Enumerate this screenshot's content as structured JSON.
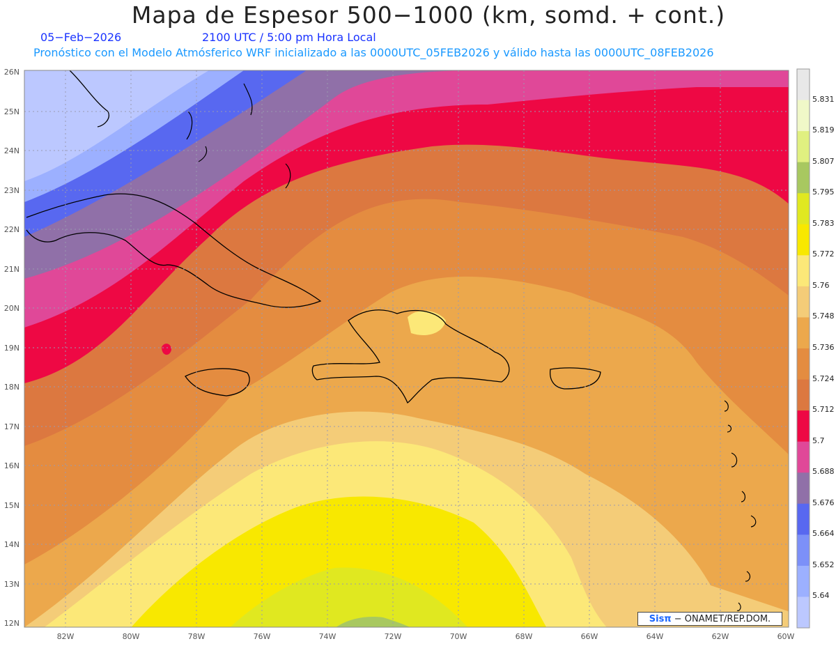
{
  "title": "Mapa de Espesor 500−1000 (km, somd. + cont.)",
  "date": "05−Feb−2026",
  "time": "2100 UTC / 5:00 pm Hora Local",
  "subtitle": "Pronóstico con el Modelo Atmósferico WRF inicializado a las 0000UTC_05FEB2026 y válido hasta las  0000UTC_08FEB2026",
  "credit": {
    "brand": "Sisπ",
    "text": "− ONAMET/REP.DOM."
  },
  "lat_labels": [
    "26N",
    "25N",
    "24N",
    "23N",
    "22N",
    "21N",
    "20N",
    "19N",
    "18N",
    "17N",
    "16N",
    "15N",
    "14N",
    "13N",
    "12N"
  ],
  "lon_labels": [
    "82W",
    "80W",
    "78W",
    "76W",
    "74W",
    "72W",
    "70W",
    "68W",
    "66W",
    "64W",
    "62W",
    "60W"
  ],
  "colorbar": {
    "labels": [
      "5.831",
      "5.819",
      "5.807",
      "5.795",
      "5.783",
      "5.772",
      "5.76",
      "5.748",
      "5.736",
      "5.724",
      "5.712",
      "5.7",
      "5.688",
      "5.676",
      "5.664",
      "5.652",
      "5.64"
    ],
    "colors": [
      "#e8e8e8",
      "#f0f8c8",
      "#e0f080",
      "#a8c860",
      "#e0e820",
      "#f8e800",
      "#fce878",
      "#f4cc78",
      "#eca84c",
      "#e48c40",
      "#dc7840",
      "#ee0844",
      "#e04898",
      "#9070a8",
      "#5868f0",
      "#7c90f8",
      "#9cb0ff",
      "#bcc8ff"
    ]
  }
}
